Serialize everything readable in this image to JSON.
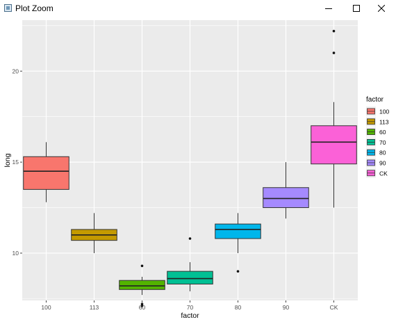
{
  "window": {
    "title": "Plot Zoom",
    "controls": [
      "minimize",
      "maximize",
      "close"
    ]
  },
  "chart_data": {
    "type": "boxplot",
    "title": "",
    "xlabel": "factor",
    "ylabel": "long",
    "ylim": [
      7.4,
      22.8
    ],
    "y_ticks": [
      10,
      15,
      20
    ],
    "y_tick_labels": [
      "10",
      "15",
      "20"
    ],
    "grid": true,
    "panel_background": "#ebebeb",
    "legend": {
      "title": "factor",
      "position": "right"
    },
    "categories": [
      "100",
      "113",
      "60",
      "70",
      "80",
      "90",
      "CK"
    ],
    "colors": [
      "#f8766d",
      "#c49a00",
      "#53b400",
      "#00c094",
      "#00b6eb",
      "#a58aff",
      "#fb61d7"
    ],
    "boxes": [
      {
        "category": "100",
        "whisker_low": 12.8,
        "q1": 13.5,
        "median": 14.5,
        "q3": 15.3,
        "whisker_high": 16.1,
        "outliers": []
      },
      {
        "category": "113",
        "whisker_low": 10.0,
        "q1": 10.7,
        "median": 11.0,
        "q3": 11.3,
        "whisker_high": 12.2,
        "outliers": []
      },
      {
        "category": "60",
        "whisker_low": 7.7,
        "q1": 8.0,
        "median": 8.2,
        "q3": 8.5,
        "whisker_high": 8.7,
        "outliers": [
          9.3,
          7.2,
          7.1
        ]
      },
      {
        "category": "70",
        "whisker_low": 7.9,
        "q1": 8.3,
        "median": 8.6,
        "q3": 9.0,
        "whisker_high": 9.5,
        "outliers": [
          10.8
        ]
      },
      {
        "category": "80",
        "whisker_low": 10.0,
        "q1": 10.8,
        "median": 11.3,
        "q3": 11.6,
        "whisker_high": 12.2,
        "outliers": [
          9.0
        ]
      },
      {
        "category": "90",
        "whisker_low": 11.9,
        "q1": 12.5,
        "median": 13.0,
        "q3": 13.6,
        "whisker_high": 15.0,
        "outliers": []
      },
      {
        "category": "CK",
        "whisker_low": 12.5,
        "q1": 14.9,
        "median": 16.1,
        "q3": 17.0,
        "whisker_high": 18.3,
        "outliers": [
          21.0,
          22.2
        ]
      }
    ]
  }
}
